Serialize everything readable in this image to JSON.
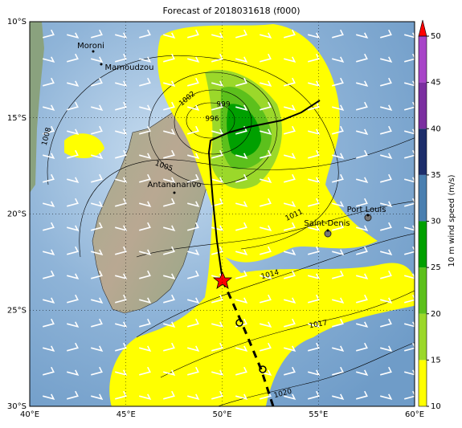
{
  "map": {
    "title": "Forecast of 2018031618 (f000)",
    "lon_ticks": [
      {
        "value": 40,
        "label": "40°E"
      },
      {
        "value": 45,
        "label": "45°E"
      },
      {
        "value": 50,
        "label": "50°E"
      },
      {
        "value": 55,
        "label": "55°E"
      },
      {
        "value": 60,
        "label": "60°E"
      }
    ],
    "lat_ticks": [
      {
        "value": -10,
        "label": "10°S"
      },
      {
        "value": -15,
        "label": "15°S"
      },
      {
        "value": -20,
        "label": "20°S"
      },
      {
        "value": -25,
        "label": "25°S"
      },
      {
        "value": -30,
        "label": "30°S"
      }
    ],
    "lonlim": [
      40,
      60
    ],
    "latlim": [
      -10,
      -30
    ],
    "places": [
      "Moroni",
      "Mamoudzou",
      "Antananarivo",
      "Saint-Denis",
      "Port Louis"
    ],
    "isobar_labels": [
      "1008",
      "1002",
      "999",
      "996",
      "1005",
      "1011",
      "1014",
      "1017",
      "1020"
    ],
    "colorbar": {
      "label": "10 m wind speed (m/s)",
      "lim": [
        10,
        50
      ],
      "ticks": [
        10,
        15,
        20,
        25,
        30,
        35,
        40,
        45,
        50
      ],
      "colors": [
        "#ffff00",
        "#9bd82a",
        "#5cc01c",
        "#00a000",
        "#4a7fb0",
        "#1d2e6b",
        "#7b2fa0",
        "#a845c8"
      ],
      "extend_color": "#ff0000"
    }
  }
}
